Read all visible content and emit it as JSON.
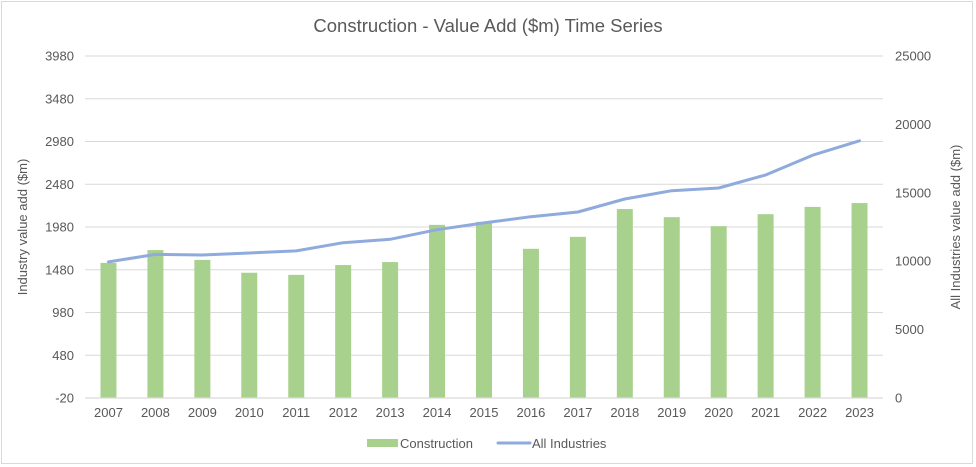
{
  "chart_data": {
    "type": "bar+line",
    "title": "Construction - Value Add ($m) Time Series",
    "xlabel": "",
    "ylabel": "Industry value add ($m)",
    "y2label": "All Industries value add ($m)",
    "categories": [
      "2007",
      "2008",
      "2009",
      "2010",
      "2011",
      "2012",
      "2013",
      "2014",
      "2015",
      "2016",
      "2017",
      "2018",
      "2019",
      "2020",
      "2021",
      "2022",
      "2023"
    ],
    "ylim": [
      -20,
      3980
    ],
    "y_ticks": [
      "3980",
      "3480",
      "2980",
      "2480",
      "1980",
      "1480",
      "980",
      "480",
      "-20"
    ],
    "y_tick_values": [
      3980,
      3480,
      2980,
      2480,
      1980,
      1480,
      980,
      480,
      -20
    ],
    "y2lim": [
      0,
      25000
    ],
    "y2_ticks": [
      "25000",
      "20000",
      "15000",
      "10000",
      "5000",
      "0"
    ],
    "y2_tick_values": [
      25000,
      20000,
      15000,
      10000,
      5000,
      0
    ],
    "grid": true,
    "legend_position": "bottom",
    "series": [
      {
        "name": "Construction",
        "type": "bar",
        "axis": "left",
        "color": "#a9d18e",
        "values": [
          1560,
          1710,
          1595,
          1445,
          1420,
          1535,
          1570,
          2005,
          2040,
          1725,
          1865,
          2190,
          2095,
          1990,
          2130,
          2215,
          2260
        ]
      },
      {
        "name": "All Industries",
        "type": "line",
        "axis": "right",
        "color": "#8faadc",
        "values": [
          9950,
          10500,
          10450,
          10600,
          10750,
          11350,
          11600,
          12300,
          12800,
          13250,
          13600,
          14550,
          15150,
          15350,
          16300,
          17750,
          18800
        ]
      }
    ]
  },
  "colors": {
    "text": "#595959",
    "grid": "#d9d9d9"
  }
}
